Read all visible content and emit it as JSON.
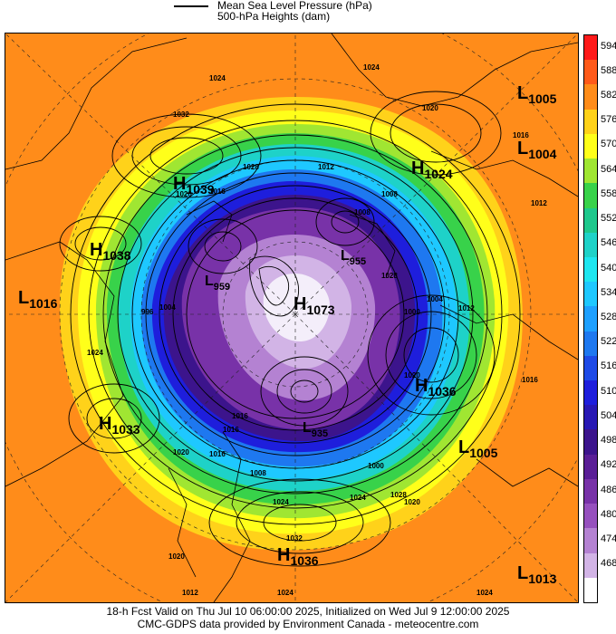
{
  "legend": {
    "line_label": "Mean Sea Level Pressure (hPa)",
    "fill_label": "500-hPa Heights (dam)"
  },
  "colorbar": [
    {
      "value": "594",
      "color": "#ff1a1a"
    },
    {
      "value": "588",
      "color": "#ff5a1a"
    },
    {
      "value": "582",
      "color": "#ff8c1a"
    },
    {
      "value": "576",
      "color": "#ffd21a"
    },
    {
      "value": "570",
      "color": "#ffff1a"
    },
    {
      "value": "564",
      "color": "#a0e632"
    },
    {
      "value": "558",
      "color": "#38d24a"
    },
    {
      "value": "552",
      "color": "#1ec88c"
    },
    {
      "value": "546",
      "color": "#1ed2c8"
    },
    {
      "value": "540",
      "color": "#1ee6f0"
    },
    {
      "value": "534",
      "color": "#1ec8ff"
    },
    {
      "value": "528",
      "color": "#1ea0ff"
    },
    {
      "value": "522",
      "color": "#1e78f0"
    },
    {
      "value": "516",
      "color": "#1e4ae6"
    },
    {
      "value": "510",
      "color": "#1e1edc"
    },
    {
      "value": "504",
      "color": "#2818b4"
    },
    {
      "value": "498",
      "color": "#3c148c"
    },
    {
      "value": "492",
      "color": "#5a1e96"
    },
    {
      "value": "486",
      "color": "#7832a8"
    },
    {
      "value": "480",
      "color": "#9650be"
    },
    {
      "value": "474",
      "color": "#b482d2"
    },
    {
      "value": "468",
      "color": "#d2b4e6"
    },
    {
      "value": "",
      "color": "#ffffff"
    }
  ],
  "pressure_centers": [
    {
      "type": "H",
      "value": "1039"
    },
    {
      "type": "H",
      "value": "1038"
    },
    {
      "type": "L",
      "value": "1016"
    },
    {
      "type": "H",
      "value": "1033"
    },
    {
      "type": "H",
      "value": "1024"
    },
    {
      "type": "L",
      "value": "1005"
    },
    {
      "type": "L",
      "value": "1004"
    },
    {
      "type": "L",
      "value": "955"
    },
    {
      "type": "L",
      "value": "959"
    },
    {
      "type": "H",
      "value": "1073"
    },
    {
      "type": "H",
      "value": "1036"
    },
    {
      "type": "L",
      "value": "1005"
    },
    {
      "type": "L",
      "value": "935"
    },
    {
      "type": "H",
      "value": "1036"
    },
    {
      "type": "L",
      "value": "1013"
    }
  ],
  "isobar_labels": [
    "1024",
    "1032",
    "1028",
    "1020",
    "1016",
    "1012",
    "1008",
    "1004",
    "1000",
    "996",
    "1024",
    "1016",
    "1020",
    "1016",
    "1024",
    "1028",
    "1032",
    "1024",
    "1016",
    "1020",
    "1028",
    "1012",
    "1004",
    "1008",
    "1000",
    "1024",
    "1020",
    "1012",
    "1016",
    "1008",
    "1024",
    "1020",
    "1016",
    "1012",
    "1020",
    "1024"
  ],
  "footer": {
    "line1": "18-h Fcst Valid on Thu Jul 10 06:00:00 2025, Initialized on Wed Jul  9 12:00:00 2025",
    "line2": "CMC-GDPS data provided by Environment Canada - meteocentre.com"
  }
}
